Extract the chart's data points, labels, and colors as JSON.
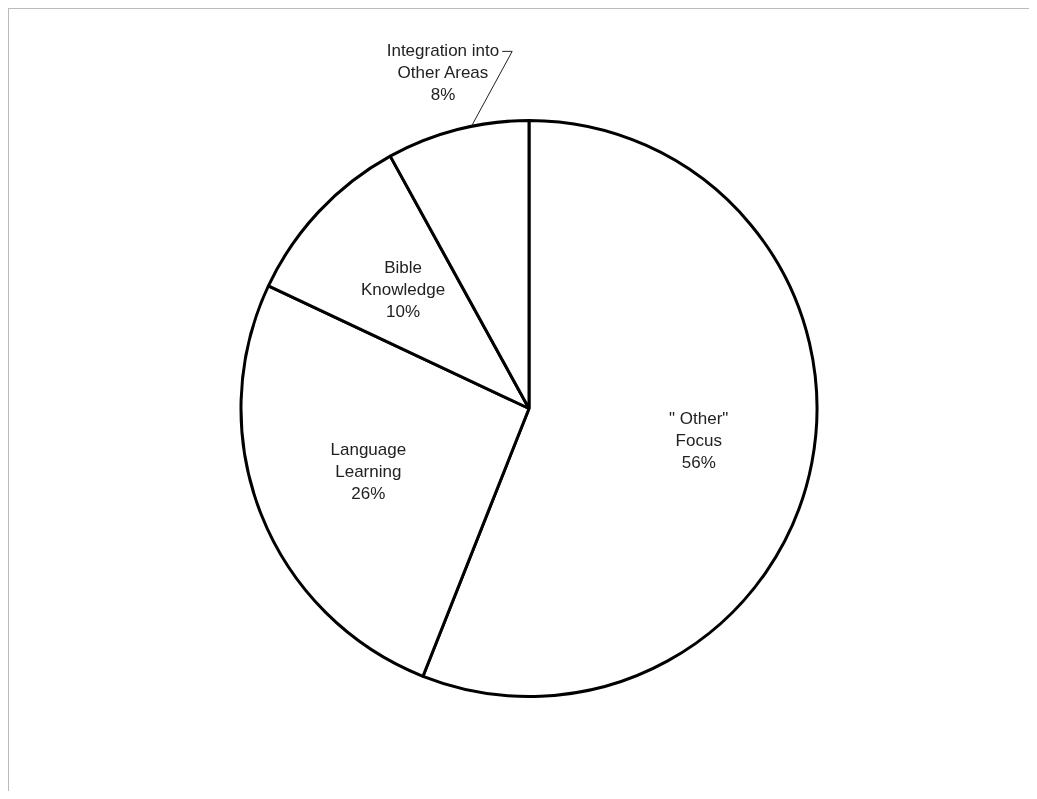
{
  "chart_data": {
    "type": "pie",
    "categories": [
      "\" Other\" Focus",
      "Language Learning",
      "Bible Knowledge",
      "Integration into Other Areas"
    ],
    "values": [
      56,
      26,
      10,
      8
    ],
    "value_labels": [
      "56%",
      "26%",
      "10%",
      "8%"
    ],
    "colors": [
      "#ffffff",
      "#ffffff",
      "#ffffff",
      "#ffffff"
    ],
    "legend": false
  }
}
